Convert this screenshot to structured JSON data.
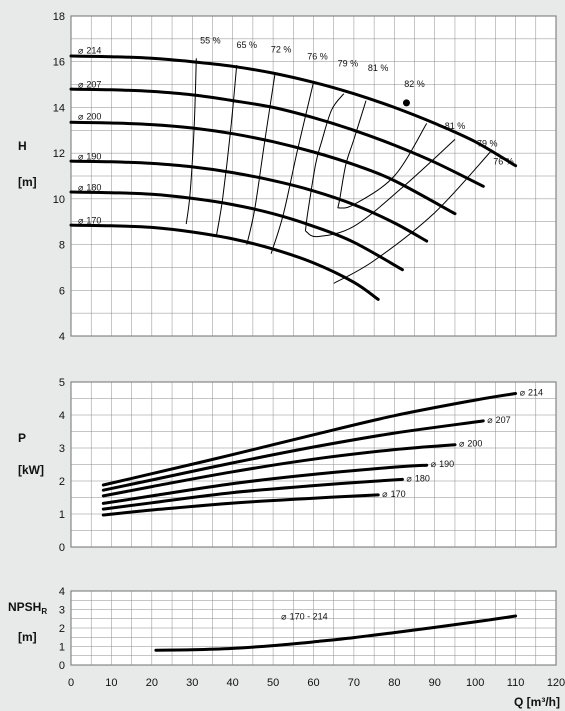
{
  "colors": {
    "background": "#e8e9e9",
    "plot_background": "#ffffff",
    "grid": "#8c8c8c",
    "curve": "#000000"
  },
  "chart_data": [
    {
      "type": "line",
      "title": "",
      "ylabel": "H",
      "yunit": "[m]",
      "xlim": [
        0,
        120
      ],
      "ylim": [
        4,
        18
      ],
      "yticks": [
        "4",
        "6",
        "8",
        "10",
        "12",
        "14",
        "16",
        "18"
      ],
      "grid": true,
      "series": [
        {
          "name": "Ø 214",
          "label_symbol": "⌀",
          "label_text": "214",
          "x": [
            0,
            10,
            20,
            30,
            40,
            50,
            60,
            70,
            80,
            90,
            100,
            110
          ],
          "y": [
            16.25,
            16.22,
            16.15,
            16.0,
            15.8,
            15.5,
            15.1,
            14.6,
            14.0,
            13.3,
            12.5,
            11.45
          ]
        },
        {
          "name": "Ø 207",
          "label_symbol": "⌀",
          "label_text": "207",
          "x": [
            0,
            10,
            20,
            30,
            40,
            50,
            60,
            70,
            80,
            90,
            102
          ],
          "y": [
            14.8,
            14.77,
            14.7,
            14.55,
            14.3,
            14.0,
            13.55,
            13.0,
            12.35,
            11.6,
            10.55
          ]
        },
        {
          "name": "Ø 200",
          "label_symbol": "⌀",
          "label_text": "200",
          "x": [
            0,
            10,
            20,
            30,
            40,
            50,
            60,
            70,
            80,
            95
          ],
          "y": [
            13.35,
            13.32,
            13.25,
            13.1,
            12.85,
            12.5,
            12.05,
            11.5,
            10.8,
            9.35
          ]
        },
        {
          "name": "Ø 190",
          "label_symbol": "⌀",
          "label_text": "190",
          "x": [
            0,
            10,
            20,
            30,
            40,
            50,
            60,
            70,
            80,
            88
          ],
          "y": [
            11.65,
            11.62,
            11.55,
            11.4,
            11.15,
            10.8,
            10.35,
            9.75,
            8.95,
            8.15
          ]
        },
        {
          "name": "Ø 180",
          "label_symbol": "⌀",
          "label_text": "180",
          "x": [
            0,
            10,
            20,
            30,
            40,
            50,
            60,
            70,
            82
          ],
          "y": [
            10.3,
            10.27,
            10.2,
            10.02,
            9.75,
            9.35,
            8.8,
            8.1,
            6.9
          ]
        },
        {
          "name": "Ø 170",
          "label_symbol": "⌀",
          "label_text": "170",
          "x": [
            0,
            10,
            20,
            30,
            40,
            50,
            60,
            70,
            76
          ],
          "y": [
            8.85,
            8.82,
            8.75,
            8.55,
            8.25,
            7.8,
            7.2,
            6.35,
            5.6
          ]
        }
      ],
      "efficiency_curves": [
        {
          "label": "55 %",
          "x": [
            28.5,
            29.5,
            30.5,
            31
          ],
          "y": [
            8.9,
            10.3,
            13.3,
            16.15
          ]
        },
        {
          "label": "65 %",
          "x": [
            36,
            37.5,
            39.5,
            41
          ],
          "y": [
            8.4,
            10.0,
            13.0,
            15.85
          ]
        },
        {
          "label": "72 %",
          "x": [
            43.5,
            45.5,
            48,
            50.5
          ],
          "y": [
            8.0,
            9.6,
            12.6,
            15.5
          ]
        },
        {
          "label": "76 %",
          "x": [
            49.5,
            52.5,
            56,
            60
          ],
          "y": [
            7.6,
            9.3,
            12.1,
            15.1
          ]
        },
        {
          "label": "79 %",
          "x": [
            58,
            58.5,
            60.5,
            62,
            64.5,
            67.5
          ],
          "y": [
            8.6,
            9.3,
            11.5,
            12.5,
            13.9,
            14.6
          ]
        },
        {
          "label": "81 %",
          "x": [
            66,
            66.5,
            68,
            70,
            73
          ],
          "y": [
            9.6,
            10.0,
            11.5,
            12.6,
            14.3
          ]
        },
        {
          "label": "81 %",
          "x": [
            66,
            70,
            80,
            88
          ],
          "y": [
            9.6,
            9.75,
            11.0,
            13.3
          ]
        },
        {
          "label": "79 %",
          "x": [
            58,
            61,
            70,
            82,
            95
          ],
          "y": [
            8.6,
            8.35,
            8.8,
            10.5,
            12.6
          ]
        },
        {
          "label": "76 %",
          "x": [
            65,
            75,
            90,
            104
          ],
          "y": [
            6.3,
            7.3,
            9.4,
            12.1
          ]
        }
      ],
      "best_efficiency_point": {
        "label": "82 %",
        "x": 83,
        "y": 14.2
      }
    },
    {
      "type": "line",
      "title": "",
      "ylabel": "P",
      "yunit": "[kW]",
      "xlim": [
        0,
        120
      ],
      "ylim": [
        0,
        5
      ],
      "yticks": [
        "0",
        "1",
        "2",
        "3",
        "4",
        "5"
      ],
      "grid": true,
      "series": [
        {
          "name": "Ø 214",
          "label_symbol": "⌀",
          "label_text": "214",
          "x": [
            8,
            20,
            40,
            60,
            80,
            100,
            110
          ],
          "y": [
            1.88,
            2.22,
            2.8,
            3.4,
            3.98,
            4.45,
            4.65
          ]
        },
        {
          "name": "Ø 207",
          "label_symbol": "⌀",
          "label_text": "207",
          "x": [
            8,
            20,
            40,
            60,
            80,
            102
          ],
          "y": [
            1.72,
            2.03,
            2.55,
            3.03,
            3.45,
            3.82
          ]
        },
        {
          "name": "Ø 200",
          "label_symbol": "⌀",
          "label_text": "200",
          "x": [
            8,
            20,
            40,
            60,
            80,
            95
          ],
          "y": [
            1.55,
            1.83,
            2.28,
            2.66,
            2.95,
            3.1
          ]
        },
        {
          "name": "Ø 190",
          "label_symbol": "⌀",
          "label_text": "190",
          "x": [
            8,
            20,
            40,
            60,
            80,
            88
          ],
          "y": [
            1.32,
            1.55,
            1.92,
            2.2,
            2.42,
            2.48
          ]
        },
        {
          "name": "Ø 180",
          "label_symbol": "⌀",
          "label_text": "180",
          "x": [
            8,
            20,
            40,
            60,
            70,
            82
          ],
          "y": [
            1.15,
            1.34,
            1.65,
            1.86,
            1.95,
            2.05
          ]
        },
        {
          "name": "Ø 170",
          "label_symbol": "⌀",
          "label_text": "170",
          "x": [
            8,
            20,
            40,
            60,
            76
          ],
          "y": [
            0.97,
            1.12,
            1.33,
            1.48,
            1.58
          ]
        }
      ]
    },
    {
      "type": "line",
      "title": "",
      "ylabel_main": "NPSH",
      "ylabel_sub": "R",
      "yunit": "[m]",
      "xlabel": "Q [m³/h]",
      "xlim": [
        0,
        120
      ],
      "ylim": [
        0,
        4
      ],
      "xticks": [
        "0",
        "10",
        "20",
        "30",
        "40",
        "50",
        "60",
        "70",
        "80",
        "90",
        "100",
        "110",
        "120"
      ],
      "yticks": [
        "0",
        "1",
        "2",
        "3",
        "4"
      ],
      "grid": true,
      "series": [
        {
          "name": "Ø 170 - 214",
          "label_symbol": "⌀",
          "label_text": "170 - 214",
          "x": [
            21,
            30,
            40,
            50,
            60,
            70,
            80,
            90,
            100,
            110
          ],
          "y": [
            0.8,
            0.82,
            0.9,
            1.05,
            1.25,
            1.48,
            1.75,
            2.03,
            2.33,
            2.65
          ]
        }
      ]
    }
  ]
}
